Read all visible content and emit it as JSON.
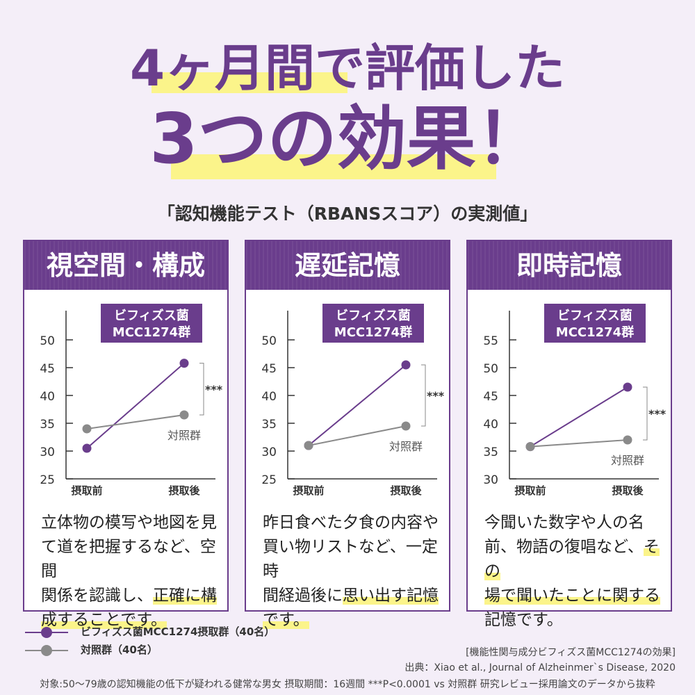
{
  "headline": {
    "line1": "4ヶ月間で評価した",
    "line2": "3つの効果！"
  },
  "subtitle": "「認知機能テスト（RBANSスコア）の実測値」",
  "colors": {
    "accent": "#6a3d8c",
    "control": "#8a8a8a",
    "highlight": "#fbf48a"
  },
  "panels": [
    {
      "title": "視空間・構成",
      "badge": [
        "ビフィズス菌",
        "MCC1274群"
      ],
      "significance": "***",
      "control_label": "対照群",
      "desc": [
        "立体物の模写や地図を見",
        "て道を把握するなど、空間",
        "関係を認識し、",
        "正確に構",
        "成することです。"
      ]
    },
    {
      "title": "遅延記憶",
      "badge": [
        "ビフィズス菌",
        "MCC1274群"
      ],
      "significance": "***",
      "control_label": "対照群",
      "desc": [
        "昨日食べた夕食の内容や",
        "買い物リストなど、一定時",
        "間経過後に",
        "思い出す記憶",
        "です。"
      ]
    },
    {
      "title": "即時記憶",
      "badge": [
        "ビフィズス菌",
        "MCC1274群"
      ],
      "significance": "***",
      "control_label": "対照群",
      "desc": [
        "今聞いた数字や人の名",
        "前、物語の復唱など、",
        "その",
        "場で聞いたことに関する",
        "記憶です。"
      ]
    }
  ],
  "legend": {
    "treatment": "ビフィズス菌MCC1274摂取群（40名）",
    "control": "対照群（40名）"
  },
  "notes": {
    "line1": "[機能性関与成分ビフィズス菌MCC1274の効果]",
    "line2": "出典：Xiao et al., Journal of Alzheinmer`s Disease, 2020"
  },
  "footnote": "対象:50〜79歳の認知機能の低下が疑われる健常な男女 摂取期間：16週間 ***P<0.0001 vs 対照群 研究レビュー採用論文のデータから抜粋",
  "chart_data": [
    {
      "type": "line",
      "categories": [
        "摂取前",
        "摂取後"
      ],
      "yticks": [
        25,
        30,
        35,
        40,
        45,
        50
      ],
      "ylim": [
        25,
        50
      ],
      "series": [
        {
          "name": "ビフィズス菌MCC1274摂取群（40名）",
          "values": [
            30.5,
            45.8
          ]
        },
        {
          "name": "対照群（40名）",
          "values": [
            34.0,
            36.5
          ]
        }
      ]
    },
    {
      "type": "line",
      "categories": [
        "摂取前",
        "摂取後"
      ],
      "yticks": [
        25,
        30,
        35,
        40,
        45,
        50
      ],
      "ylim": [
        25,
        50
      ],
      "series": [
        {
          "name": "ビフィズス菌MCC1274摂取群（40名）",
          "values": [
            31.0,
            45.5
          ]
        },
        {
          "name": "対照群（40名）",
          "values": [
            31.0,
            34.5
          ]
        }
      ]
    },
    {
      "type": "line",
      "categories": [
        "摂取前",
        "摂取後"
      ],
      "yticks": [
        30,
        35,
        40,
        45,
        50,
        55
      ],
      "ylim": [
        30,
        55
      ],
      "series": [
        {
          "name": "ビフィズス菌MCC1274摂取群（40名）",
          "values": [
            35.8,
            46.5
          ]
        },
        {
          "name": "対照群（40名）",
          "values": [
            35.8,
            37.0
          ]
        }
      ]
    }
  ]
}
